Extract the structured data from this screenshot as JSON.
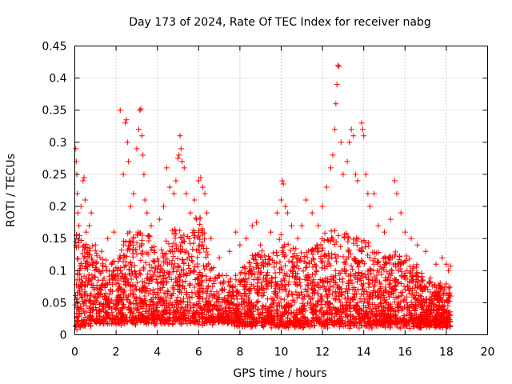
{
  "chart_data": {
    "type": "scatter",
    "title": "Day 173 of 2024, Rate Of TEC Index for receiver nabg",
    "xlabel": "GPS time / hours",
    "ylabel": "ROTI / TECUs",
    "xlim": [
      0,
      20
    ],
    "ylim": [
      0,
      0.45
    ],
    "xticks": [
      0,
      2,
      4,
      6,
      8,
      10,
      12,
      14,
      16,
      18,
      20
    ],
    "yticks": [
      0,
      0.05,
      0.1,
      0.15,
      0.2,
      0.25,
      0.3,
      0.35,
      0.4,
      0.45
    ],
    "ytick_labels": [
      "0",
      "0.05",
      "0.1",
      "0.15",
      "0.2",
      "0.25",
      "0.3",
      "0.35",
      "0.4",
      "0.45"
    ],
    "grid": true,
    "marker": "+",
    "color": "#ff0000",
    "series": [
      {
        "points": [
          [
            0.05,
            0.29
          ],
          [
            0.07,
            0.27
          ],
          [
            0.1,
            0.25
          ],
          [
            0.12,
            0.22
          ],
          [
            0.15,
            0.19
          ],
          [
            0.2,
            0.17
          ],
          [
            0.3,
            0.2
          ],
          [
            0.4,
            0.24
          ],
          [
            0.45,
            0.245
          ],
          [
            0.5,
            0.21
          ],
          [
            0.55,
            0.16
          ],
          [
            0.7,
            0.17
          ],
          [
            0.8,
            0.19
          ],
          [
            1.0,
            0.14
          ],
          [
            1.3,
            0.13
          ],
          [
            1.6,
            0.15
          ],
          [
            1.9,
            0.16
          ],
          [
            2.2,
            0.35
          ],
          [
            2.35,
            0.25
          ],
          [
            2.45,
            0.33
          ],
          [
            2.5,
            0.335
          ],
          [
            2.55,
            0.3
          ],
          [
            2.6,
            0.27
          ],
          [
            2.7,
            0.2
          ],
          [
            2.85,
            0.22
          ],
          [
            3.0,
            0.29
          ],
          [
            3.1,
            0.32
          ],
          [
            3.15,
            0.35
          ],
          [
            3.2,
            0.352
          ],
          [
            3.25,
            0.31
          ],
          [
            3.3,
            0.28
          ],
          [
            3.35,
            0.25
          ],
          [
            3.4,
            0.21
          ],
          [
            3.5,
            0.19
          ],
          [
            3.7,
            0.17
          ],
          [
            4.1,
            0.18
          ],
          [
            4.3,
            0.2
          ],
          [
            4.45,
            0.26
          ],
          [
            4.6,
            0.23
          ],
          [
            4.8,
            0.22
          ],
          [
            4.9,
            0.24
          ],
          [
            5.0,
            0.275
          ],
          [
            5.05,
            0.28
          ],
          [
            5.1,
            0.31
          ],
          [
            5.15,
            0.29
          ],
          [
            5.2,
            0.27
          ],
          [
            5.3,
            0.26
          ],
          [
            5.4,
            0.22
          ],
          [
            5.6,
            0.19
          ],
          [
            5.8,
            0.21
          ],
          [
            6.0,
            0.24
          ],
          [
            6.1,
            0.245
          ],
          [
            6.2,
            0.23
          ],
          [
            6.3,
            0.22
          ],
          [
            6.4,
            0.19
          ],
          [
            6.6,
            0.15
          ],
          [
            7.0,
            0.12
          ],
          [
            7.5,
            0.13
          ],
          [
            7.8,
            0.16
          ],
          [
            8.0,
            0.14
          ],
          [
            8.3,
            0.15
          ],
          [
            8.6,
            0.17
          ],
          [
            8.8,
            0.175
          ],
          [
            9.0,
            0.14
          ],
          [
            9.5,
            0.16
          ],
          [
            9.8,
            0.19
          ],
          [
            10.0,
            0.21
          ],
          [
            10.05,
            0.24
          ],
          [
            10.1,
            0.235
          ],
          [
            10.2,
            0.2
          ],
          [
            10.3,
            0.19
          ],
          [
            10.5,
            0.17
          ],
          [
            10.8,
            0.15
          ],
          [
            11.0,
            0.17
          ],
          [
            11.2,
            0.21
          ],
          [
            11.5,
            0.19
          ],
          [
            11.8,
            0.17
          ],
          [
            12.0,
            0.2
          ],
          [
            12.2,
            0.23
          ],
          [
            12.4,
            0.26
          ],
          [
            12.5,
            0.28
          ],
          [
            12.6,
            0.32
          ],
          [
            12.65,
            0.36
          ],
          [
            12.7,
            0.39
          ],
          [
            12.75,
            0.42
          ],
          [
            12.8,
            0.418
          ],
          [
            12.9,
            0.3
          ],
          [
            13.0,
            0.25
          ],
          [
            13.2,
            0.27
          ],
          [
            13.3,
            0.3
          ],
          [
            13.4,
            0.32
          ],
          [
            13.5,
            0.31
          ],
          [
            13.6,
            0.25
          ],
          [
            13.7,
            0.24
          ],
          [
            13.9,
            0.33
          ],
          [
            13.95,
            0.32
          ],
          [
            14.0,
            0.31
          ],
          [
            14.1,
            0.25
          ],
          [
            14.2,
            0.22
          ],
          [
            14.3,
            0.2
          ],
          [
            14.5,
            0.22
          ],
          [
            14.7,
            0.17
          ],
          [
            15.0,
            0.16
          ],
          [
            15.3,
            0.18
          ],
          [
            15.5,
            0.24
          ],
          [
            15.6,
            0.22
          ],
          [
            15.8,
            0.19
          ],
          [
            16.0,
            0.16
          ],
          [
            16.3,
            0.15
          ],
          [
            16.6,
            0.14
          ],
          [
            17.0,
            0.13
          ],
          [
            17.5,
            0.11
          ],
          [
            17.8,
            0.12
          ],
          [
            18.0,
            0.11
          ],
          [
            18.1,
            0.1
          ],
          [
            18.2,
            0.107
          ]
        ]
      }
    ],
    "envelope": {
      "x": [
        0,
        0.5,
        1,
        1.5,
        2,
        2.5,
        3,
        3.5,
        4,
        4.5,
        5,
        5.5,
        6,
        6.5,
        7,
        7.5,
        8,
        8.5,
        9,
        9.5,
        10,
        10.5,
        11,
        11.5,
        12,
        12.5,
        13,
        13.5,
        14,
        14.5,
        15,
        15.5,
        16,
        16.5,
        17,
        17.5,
        18,
        18.2
      ],
      "upper": [
        0.16,
        0.15,
        0.13,
        0.12,
        0.12,
        0.16,
        0.16,
        0.16,
        0.13,
        0.15,
        0.17,
        0.16,
        0.2,
        0.12,
        0.1,
        0.09,
        0.1,
        0.12,
        0.13,
        0.12,
        0.16,
        0.14,
        0.13,
        0.14,
        0.16,
        0.17,
        0.16,
        0.16,
        0.15,
        0.14,
        0.12,
        0.13,
        0.12,
        0.11,
        0.09,
        0.08,
        0.08,
        0.07
      ],
      "lower": [
        0.01,
        0.015,
        0.02,
        0.02,
        0.02,
        0.02,
        0.02,
        0.02,
        0.02,
        0.02,
        0.02,
        0.02,
        0.02,
        0.02,
        0.02,
        0.02,
        0.015,
        0.015,
        0.015,
        0.015,
        0.015,
        0.015,
        0.015,
        0.015,
        0.015,
        0.015,
        0.015,
        0.015,
        0.015,
        0.015,
        0.015,
        0.015,
        0.015,
        0.015,
        0.015,
        0.015,
        0.015,
        0.015
      ],
      "x_min": 0.02,
      "x_max": 18.2,
      "count": 3600
    }
  }
}
